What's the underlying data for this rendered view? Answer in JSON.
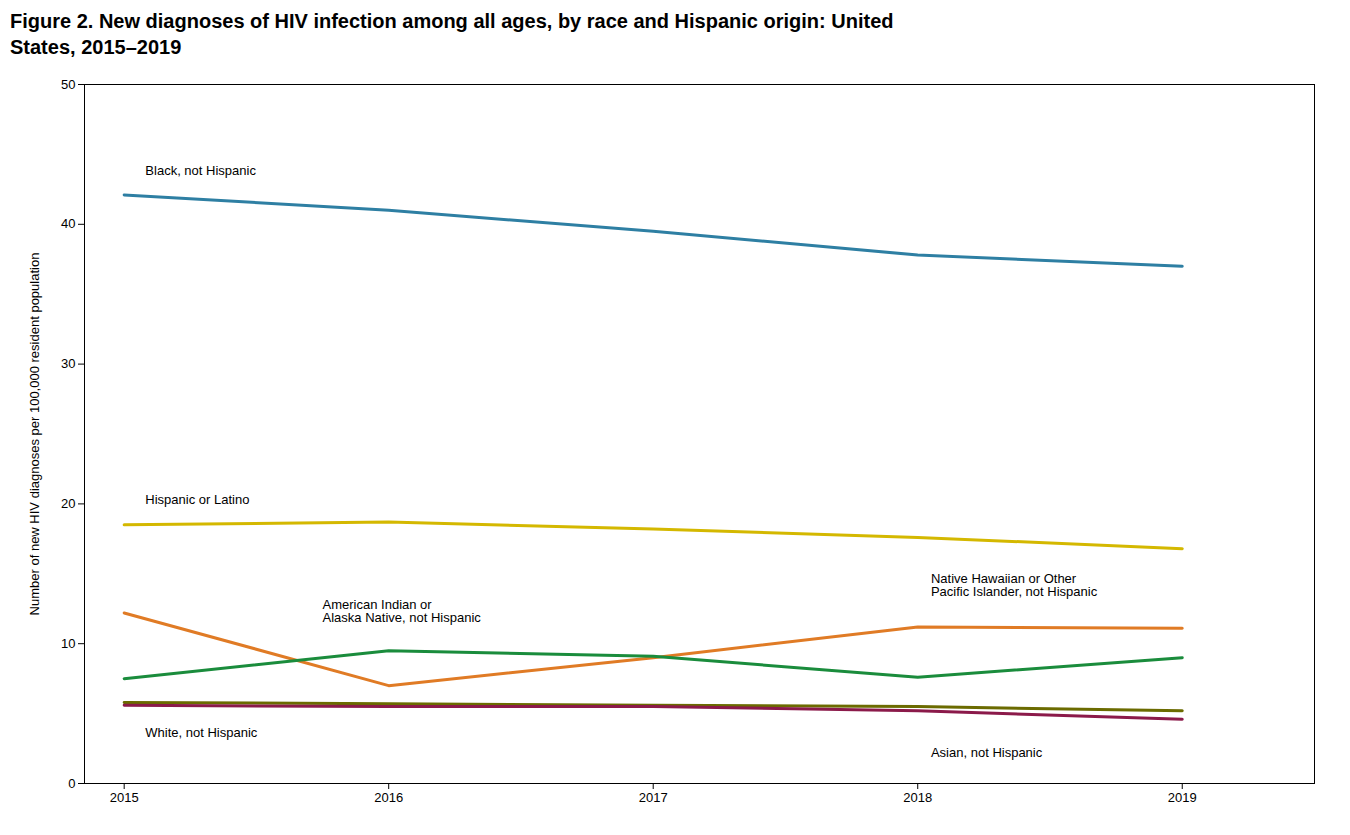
{
  "chart_data": {
    "type": "line",
    "title": "Figure 2. New diagnoses of HIV infection among all ages, by race and Hispanic origin: United\nStates, 2015–2019",
    "ylabel": "Number of new HIV diagnoses per 100,000 resident population",
    "x": [
      2015,
      2016,
      2017,
      2018,
      2019
    ],
    "series": [
      {
        "name": "Black, not Hispanic",
        "color": "#2e7fa3",
        "values": [
          42.1,
          41.0,
          39.5,
          37.8,
          37.0
        ]
      },
      {
        "name": "Hispanic or Latino",
        "color": "#d4b800",
        "values": [
          18.5,
          18.7,
          18.2,
          17.6,
          16.8
        ]
      },
      {
        "name": "Native Hawaiian or Other\nPacific Islander, not Hispanic",
        "color": "#e07b25",
        "values": [
          12.2,
          7.0,
          9.0,
          11.2,
          11.1
        ]
      },
      {
        "name": "American Indian or\nAlaska Native, not Hispanic",
        "color": "#1a8c3c",
        "values": [
          7.5,
          9.5,
          9.1,
          7.6,
          9.0
        ]
      },
      {
        "name": "White, not Hispanic",
        "color": "#6b6b00",
        "values": [
          5.8,
          5.7,
          5.6,
          5.5,
          5.2
        ]
      },
      {
        "name": "Asian, not Hispanic",
        "color": "#8b1a4a",
        "values": [
          5.6,
          5.5,
          5.5,
          5.2,
          4.6
        ]
      }
    ],
    "annotations": [
      {
        "text": "Black, not Hispanic",
        "x": 2015.08,
        "y": 43.8
      },
      {
        "text": "Hispanic or Latino",
        "x": 2015.08,
        "y": 20.3
      },
      {
        "text": "Native Hawaiian or Other\nPacific Islander, not Hispanic",
        "x": 2018.05,
        "y": 14.2
      },
      {
        "text": "American Indian or\nAlaska Native, not Hispanic",
        "x": 2015.75,
        "y": 12.3
      },
      {
        "text": "White, not Hispanic",
        "x": 2015.08,
        "y": 3.6
      },
      {
        "text": "Asian, not Hispanic",
        "x": 2018.05,
        "y": 2.2
      }
    ],
    "xlim": [
      2014.85,
      2019.5
    ],
    "xticks": [
      2015,
      2016,
      2017,
      2018,
      2019
    ],
    "ylim": [
      0,
      50
    ],
    "yticks": [
      0,
      10,
      20,
      30,
      40,
      50
    ],
    "grid": false
  }
}
